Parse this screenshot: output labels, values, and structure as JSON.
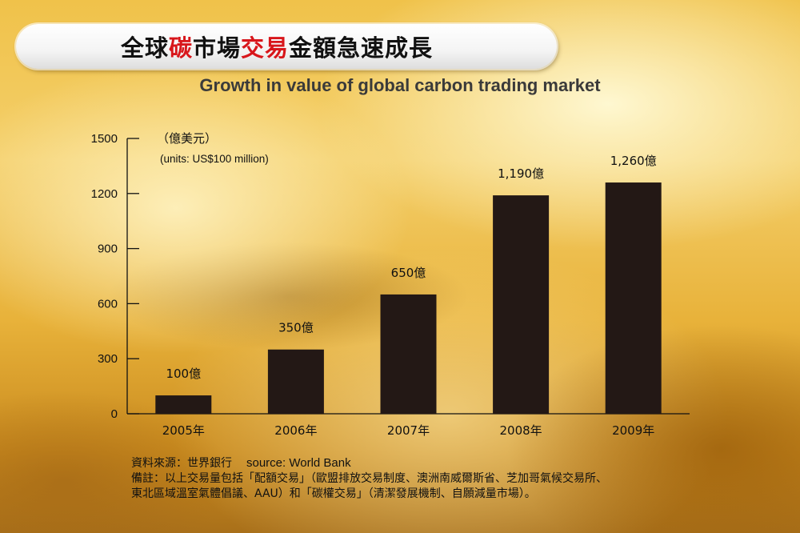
{
  "title": {
    "part1": "全球",
    "part2": "碳",
    "part3": "市場",
    "part4": "交易",
    "part5": "金額急速成長"
  },
  "subtitle": "Growth in value of global carbon trading market",
  "units": {
    "cn": "（億美元）",
    "en": "(units: US$100 million)"
  },
  "footer": {
    "source_cn": "資料來源：世界銀行",
    "source_en": "source: World Bank",
    "note_line1": "備註：以上交易量包括「配額交易」（歐盟排放交易制度、澳洲南威爾斯省、芝加哥氣候交易所、",
    "note_line2": "東北區域溫室氣體倡議、AAU）和「碳權交易」（清潔發展機制、自願減量市場）。"
  },
  "colors": {
    "bar": "#231815",
    "title_accent": "#d8161b"
  },
  "chart_data": {
    "type": "bar",
    "categories": [
      "2005年",
      "2006年",
      "2007年",
      "2008年",
      "2009年"
    ],
    "values": [
      100,
      350,
      650,
      1190,
      1260
    ],
    "data_labels": [
      "100億",
      "350億",
      "650億",
      "1,190億",
      "1,260億"
    ],
    "yticks": [
      0,
      300,
      600,
      900,
      1200,
      1500
    ],
    "ylim": [
      0,
      1500
    ],
    "title": "全球碳市場交易金額急速成長",
    "subtitle": "Growth in value of global carbon trading market",
    "ylabel": "（億美元） (units: US$100 million)",
    "xlabel": "",
    "grid": false
  }
}
